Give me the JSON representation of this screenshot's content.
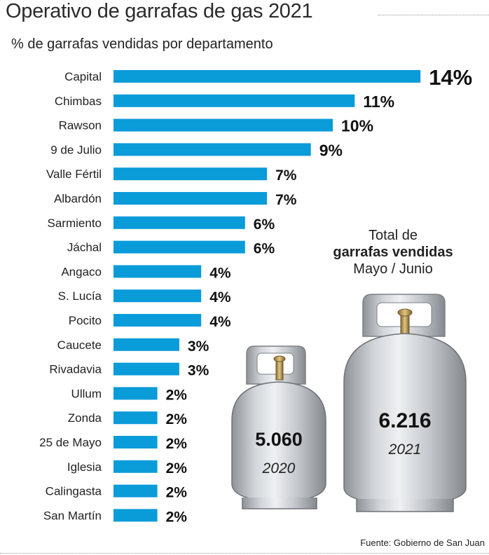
{
  "title": "Operativo de garrafas de gas 2021",
  "subtitle": "% de garrafas vendidas por departamento",
  "chart_data": {
    "type": "bar",
    "orientation": "horizontal",
    "title": "Operativo de garrafas de gas 2021",
    "subtitle": "% de garrafas vendidas por departamento",
    "unit": "%",
    "categories": [
      "Capital",
      "Chimbas",
      "Rawson",
      "9 de Julio",
      "Valle Fértil",
      "Albardón",
      "Sarmiento",
      "Jáchal",
      "Angaco",
      "S. Lucía",
      "Pocito",
      "Caucete",
      "Rivadavia",
      "Ullum",
      "Zonda",
      "25 de Mayo",
      "Iglesia",
      "Calingasta",
      "San Martín"
    ],
    "values": [
      14,
      11,
      10,
      9,
      7,
      7,
      6,
      6,
      4,
      4,
      4,
      3,
      3,
      2,
      2,
      2,
      2,
      2,
      2
    ],
    "value_labels": [
      "14%",
      "11%",
      "10%",
      "9%",
      "7%",
      "7%",
      "6%",
      "6%",
      "4%",
      "4%",
      "4%",
      "3%",
      "3%",
      "2%",
      "2%",
      "2%",
      "2%",
      "2%",
      "2%"
    ],
    "bar_color": "#0a9bd9"
  },
  "totals": {
    "heading_line1": "Total de",
    "heading_line2": "garrafas vendidas",
    "heading_line3": "Mayo / Junio",
    "items": [
      {
        "value": "5.060",
        "year": "2020"
      },
      {
        "value": "6.216",
        "year": "2021"
      }
    ]
  },
  "source": "Fuente: Gobierno de San Juan",
  "colors": {
    "cylinder": "#c9ccd0",
    "cylinder_dark": "#9a9ea4",
    "valve": "#b89a5a"
  }
}
